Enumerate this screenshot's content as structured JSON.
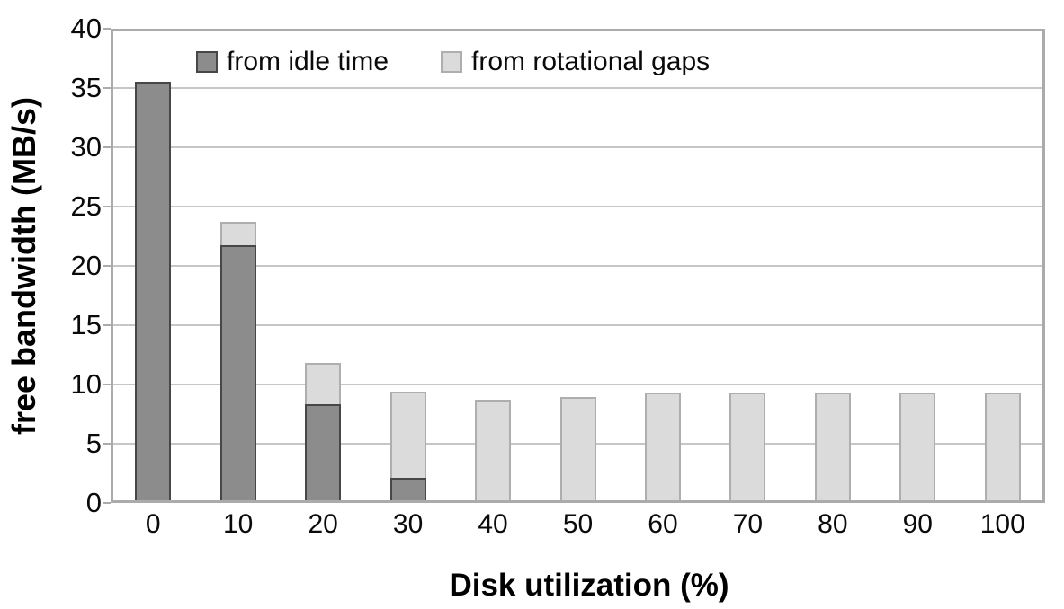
{
  "chart_data": {
    "type": "bar",
    "stacked": true,
    "xlabel": "Disk utilization (%)",
    "ylabel": "free bandwidth (MB/s)",
    "categories": [
      "0",
      "10",
      "20",
      "30",
      "40",
      "50",
      "60",
      "70",
      "80",
      "90",
      "100"
    ],
    "series": [
      {
        "name": "from idle time",
        "fill_color": "#8c8c8c",
        "border_color": "#474747",
        "values": [
          35.3,
          21.5,
          8.1,
          1.9,
          0,
          0,
          0,
          0,
          0,
          0,
          0
        ]
      },
      {
        "name": "from rotational gaps",
        "fill_color": "#dbdbdb",
        "border_color": "#aeaeae",
        "values": [
          0,
          2.0,
          3.5,
          7.3,
          8.5,
          8.7,
          9.1,
          9.1,
          9.1,
          9.1,
          9.1
        ]
      }
    ],
    "ylim": [
      0,
      40
    ],
    "yticks": [
      0,
      5,
      10,
      15,
      20,
      25,
      30,
      35,
      40
    ],
    "grid": true,
    "legend_position": "top-inside",
    "frame_color": "#ababab",
    "grid_color": "#c6c6c6",
    "background_color": "#ffffff"
  }
}
